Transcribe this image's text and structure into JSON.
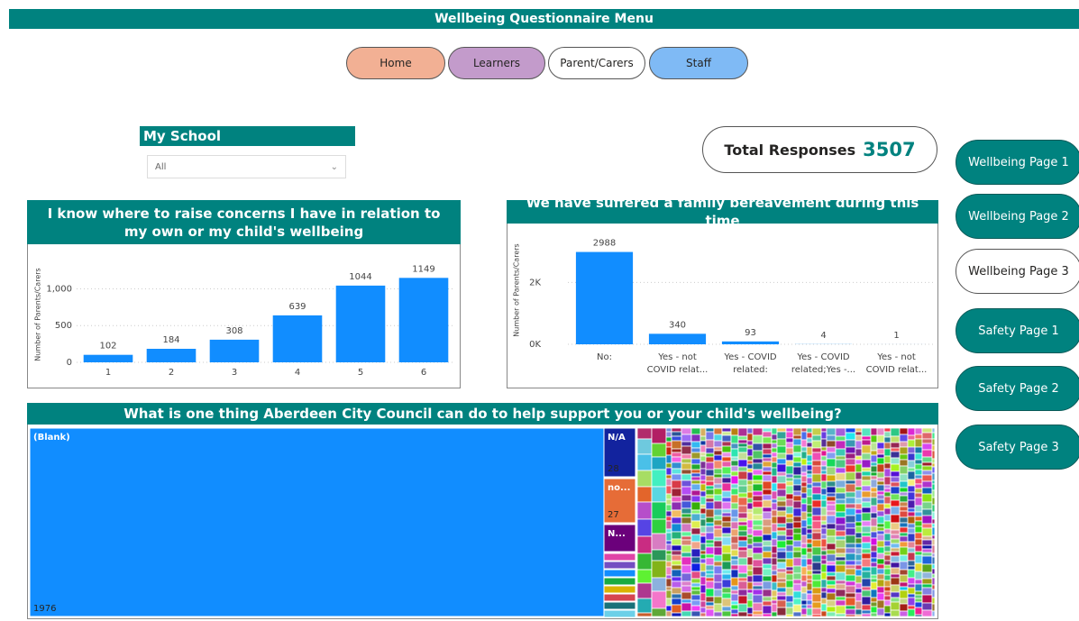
{
  "header": {
    "title": "Wellbeing Questionnaire Menu"
  },
  "nav": [
    "Home",
    "Learners",
    "Parent/Carers",
    "Staff"
  ],
  "slicer": {
    "title": "My School",
    "value": "All"
  },
  "card": {
    "label": "Total Responses",
    "value": 3507
  },
  "side_buttons": [
    "Wellbeing Page 1",
    "Wellbeing Page 2",
    "Wellbeing Page 3",
    "Safety Page 1",
    "Safety Page 2",
    "Safety Page 3"
  ],
  "chart_data": [
    {
      "type": "bar",
      "title": "I know where to raise concerns I have in relation to my own or my child's wellbeing",
      "y_label": "Number of Parents/Carers",
      "categories": [
        "1",
        "2",
        "3",
        "4",
        "5",
        "6"
      ],
      "values": [
        102,
        184,
        308,
        639,
        1044,
        1149
      ],
      "color": "#118dff",
      "ylim": [
        0,
        1300
      ],
      "yticks": [
        0,
        500,
        {
          "value": 1000,
          "label": "1,000"
        }
      ],
      "grid": true
    },
    {
      "type": "bar",
      "title": "We have suffered a family bereavement during this time",
      "y_label": "Number of Parents/Carers",
      "categories": [
        "No:",
        "Yes - not COVID relat...",
        "Yes - COVID related:",
        "Yes - COVID related;Yes -...",
        "Yes - not COVID relat..."
      ],
      "values": [
        2988,
        340,
        93,
        4,
        1
      ],
      "color": "#118dff",
      "ylim": [
        0,
        3500
      ],
      "yticks": [
        {
          "value": 0,
          "label": "0K"
        },
        {
          "value": 2000,
          "label": "2K"
        }
      ],
      "grid": true
    },
    {
      "type": "treemap",
      "title": "What is one thing Aberdeen City Council can do to help support you or your child's wellbeing?",
      "categories": [
        "(Blank)",
        "N/A",
        "no...",
        "N..."
      ],
      "values": [
        1976,
        28,
        27,
        16
      ],
      "colors": [
        "#118dff",
        "#12239e",
        "#e66c37",
        "#6b007b"
      ]
    }
  ]
}
